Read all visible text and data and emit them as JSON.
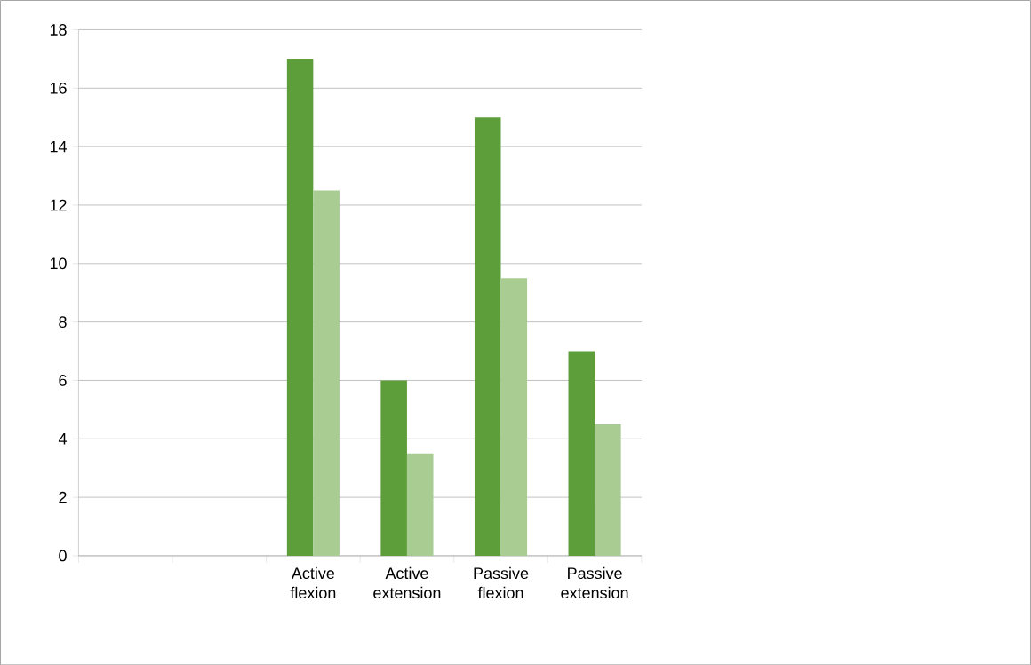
{
  "chart_data": {
    "type": "bar",
    "categories": [
      null,
      null,
      "Active flexion",
      "Active extension",
      "Passive flexion",
      "Passive extension"
    ],
    "series": [
      {
        "color": "#5e9e3a",
        "values": [
          null,
          null,
          17,
          6,
          15,
          7
        ]
      },
      {
        "color": "#a8cc92",
        "values": [
          null,
          null,
          12.5,
          3.5,
          9.5,
          4.5
        ]
      }
    ],
    "ylim": [
      0,
      18
    ],
    "yticks": [
      0,
      2,
      4,
      6,
      8,
      10,
      12,
      14,
      16,
      18
    ],
    "grid": "y"
  }
}
